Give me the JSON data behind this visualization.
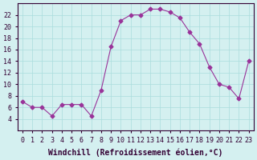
{
  "x": [
    0,
    1,
    2,
    3,
    4,
    5,
    6,
    7,
    8,
    9,
    10,
    11,
    12,
    13,
    14,
    15,
    16,
    17,
    18,
    19,
    20,
    21,
    22,
    23
  ],
  "y": [
    7,
    6,
    6,
    4.5,
    6.5,
    6.5,
    6.5,
    4.5,
    9,
    16.5,
    21,
    22,
    22,
    23,
    23,
    22.5,
    21.5,
    19,
    17,
    13,
    10,
    9.5,
    7.5,
    14
  ],
  "line_color": "#993399",
  "marker": "D",
  "marker_size": 2.5,
  "bg_color": "#d4f0f0",
  "grid_color": "#aadddd",
  "xlabel": "Windchill (Refroidissement éolien,°C)",
  "ylim": [
    2,
    24
  ],
  "xlim": [
    -0.5,
    23.5
  ],
  "yticks": [
    4,
    6,
    8,
    10,
    12,
    14,
    16,
    18,
    20,
    22
  ],
  "xtick_labels": [
    "0",
    "1",
    "2",
    "3",
    "4",
    "5",
    "6",
    "7",
    "8",
    "9",
    "10",
    "11",
    "12",
    "13",
    "14",
    "15",
    "16",
    "17",
    "18",
    "19",
    "20",
    "21",
    "22",
    "23"
  ],
  "font_color": "#330033",
  "label_fontsize": 7,
  "tick_fontsize": 6
}
